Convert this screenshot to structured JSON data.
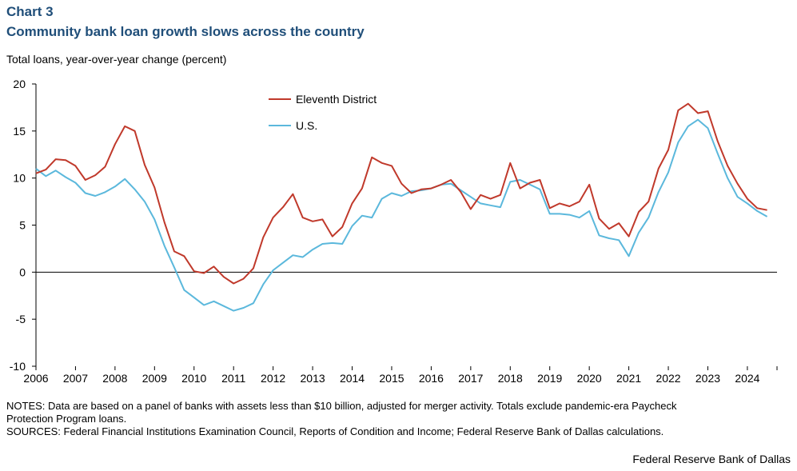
{
  "header": {
    "chart_number": "Chart 3",
    "title": "Community bank loan growth slows across the country",
    "y_axis_label": "Total loans, year-over-year  change (percent)"
  },
  "colors": {
    "eleventh": "#c0392b",
    "us": "#5bb8dc",
    "axis": "#000000"
  },
  "chart_data": {
    "type": "line",
    "title": "Community bank loan growth slows across the country",
    "xlabel": "",
    "ylabel": "Total loans, year-over-year  change (percent)",
    "ylim": [
      -10,
      20
    ],
    "xlim": [
      2006,
      2024.75
    ],
    "y_ticks": [
      20,
      15,
      10,
      5,
      0,
      -5,
      -10
    ],
    "x_ticks": [
      "2006",
      "2007",
      "2008",
      "2009",
      "2010",
      "2011",
      "2012",
      "2013",
      "2014",
      "2015",
      "2016",
      "2017",
      "2018",
      "2019",
      "2020",
      "2021",
      "2022",
      "2023",
      "2024"
    ],
    "legend_position": "top-center",
    "x": [
      2006,
      2006.25,
      2006.5,
      2006.75,
      2007,
      2007.25,
      2007.5,
      2007.75,
      2008,
      2008.25,
      2008.5,
      2008.75,
      2009,
      2009.25,
      2009.5,
      2009.75,
      2010,
      2010.25,
      2010.5,
      2010.75,
      2011,
      2011.25,
      2011.5,
      2011.75,
      2012,
      2012.25,
      2012.5,
      2012.75,
      2013,
      2013.25,
      2013.5,
      2013.75,
      2014,
      2014.25,
      2014.5,
      2014.75,
      2015,
      2015.25,
      2015.5,
      2015.75,
      2016,
      2016.25,
      2016.5,
      2016.75,
      2017,
      2017.25,
      2017.5,
      2017.75,
      2018,
      2018.25,
      2018.5,
      2018.75,
      2019,
      2019.25,
      2019.5,
      2019.75,
      2020,
      2020.25,
      2020.5,
      2020.75,
      2021,
      2021.25,
      2021.5,
      2021.75,
      2022,
      2022.25,
      2022.5,
      2022.75,
      2023,
      2023.25,
      2023.5,
      2023.75,
      2024,
      2024.25,
      2024.5
    ],
    "series": [
      {
        "name": "Eleventh District",
        "values": [
          10.5,
          10.9,
          12.0,
          11.9,
          11.3,
          9.8,
          10.3,
          11.2,
          13.6,
          15.5,
          15.0,
          11.4,
          9.0,
          5.3,
          2.2,
          1.7,
          0.1,
          -0.1,
          0.6,
          -0.5,
          -1.2,
          -0.7,
          0.4,
          3.7,
          5.8,
          6.9,
          8.3,
          5.8,
          5.4,
          5.6,
          3.8,
          4.8,
          7.3,
          8.9,
          12.2,
          11.6,
          11.3,
          9.4,
          8.4,
          8.8,
          8.9,
          9.3,
          9.8,
          8.5,
          6.7,
          8.2,
          7.8,
          8.2,
          11.6,
          8.9,
          9.5,
          9.8,
          6.8,
          7.3,
          7.0,
          7.5,
          9.3,
          5.7,
          4.6,
          5.2,
          3.8,
          6.4,
          7.5,
          11.0,
          13.0,
          17.2,
          17.9,
          16.9,
          17.1,
          13.9,
          11.3,
          9.4,
          7.8,
          6.8,
          6.6
        ]
      },
      {
        "name": "U.S.",
        "values": [
          11.0,
          10.2,
          10.8,
          10.1,
          9.5,
          8.4,
          8.1,
          8.5,
          9.1,
          9.9,
          8.8,
          7.5,
          5.6,
          2.8,
          0.5,
          -1.9,
          -2.7,
          -3.5,
          -3.1,
          -3.6,
          -4.1,
          -3.8,
          -3.3,
          -1.3,
          0.2,
          1.0,
          1.8,
          1.6,
          2.4,
          3.0,
          3.1,
          3.0,
          4.9,
          6.0,
          5.8,
          7.8,
          8.4,
          8.1,
          8.6,
          8.7,
          8.9,
          9.3,
          9.4,
          8.7,
          8.0,
          7.3,
          7.1,
          6.9,
          9.6,
          9.8,
          9.3,
          8.8,
          6.2,
          6.2,
          6.1,
          5.8,
          6.5,
          3.9,
          3.6,
          3.4,
          1.7,
          4.2,
          5.8,
          8.5,
          10.6,
          13.8,
          15.5,
          16.2,
          15.3,
          12.6,
          10.0,
          8.0,
          7.3,
          6.5,
          5.9
        ]
      }
    ]
  },
  "notes": {
    "line1": "NOTES: Data are based on a panel of banks with assets less than $10 billion, adjusted for merger activity. Totals exclude pandemic-era Paycheck",
    "line2": "Protection Program loans.",
    "line3": "SOURCES: Federal Financial Institutions Examination Council, Reports of Condition and Income; Federal Reserve Bank of Dallas calculations."
  },
  "footer": {
    "credit": "Federal Reserve Bank of Dallas"
  }
}
